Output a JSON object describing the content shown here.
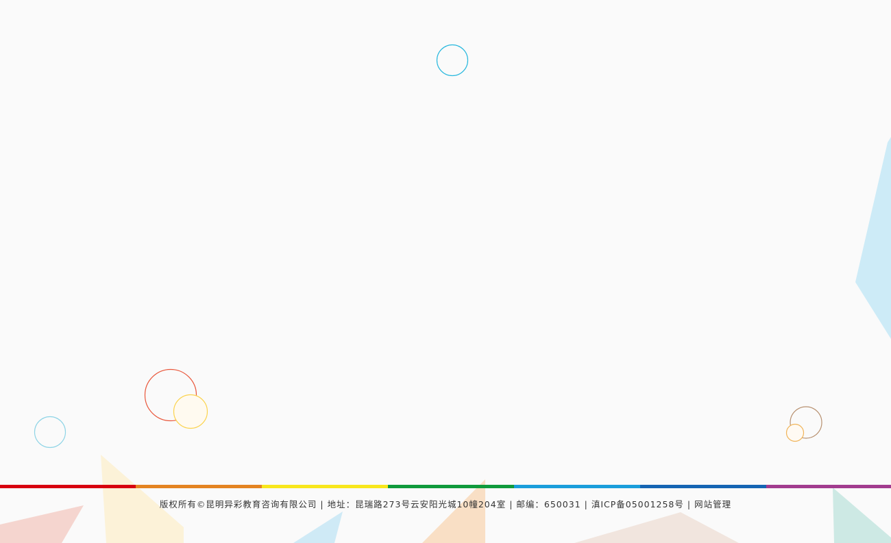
{
  "footer": {
    "copyright": "版权所有©昆明异彩教育咨询有限公司",
    "separator": "|",
    "address": "地址：昆瑞路273号云安阳光城10幢204室",
    "postcode": "邮编：650031",
    "icp": "滇ICP备05001258号",
    "admin_link": "网站管理"
  },
  "theme": {
    "stripe_colors": [
      "#d7000f",
      "#e48422",
      "#f8e71c",
      "#109a3c",
      "#1a9edb",
      "#1565b3",
      "#a23c8f"
    ],
    "circle_colors": [
      "#28b8de",
      "#e9563a",
      "#fbd34d",
      "#8ed4e6",
      "#b7906f",
      "#f0b45a"
    ]
  }
}
